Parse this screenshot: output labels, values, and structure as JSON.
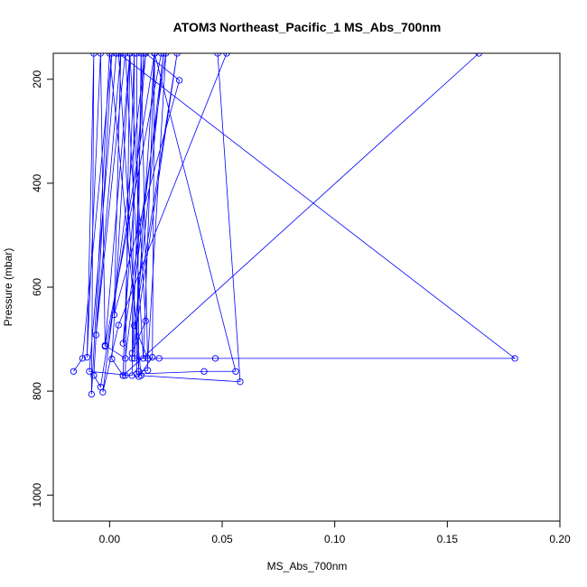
{
  "chart_data": {
    "type": "line",
    "title": "ATOM3 Northeast_Pacific_1 MS_Abs_700nm",
    "xlabel": "MS_Abs_700nm",
    "ylabel": "Pressure (mbar)",
    "xlim": [
      -0.025,
      0.2
    ],
    "ylim": [
      1050,
      150
    ],
    "y_reversed": true,
    "x_ticks": [
      0.0,
      0.05,
      0.1,
      0.15,
      0.2
    ],
    "x_tick_labels": [
      "0.00",
      "0.05",
      "0.10",
      "0.15",
      "0.20"
    ],
    "y_ticks": [
      200,
      400,
      600,
      800,
      1000
    ],
    "y_tick_labels": [
      "200",
      "400",
      "600",
      "800",
      "1000"
    ],
    "grid": false,
    "legend": "none",
    "series_color": "#0000ff",
    "series": [
      {
        "x": [
          -0.016,
          -0.012,
          0.001,
          -0.007,
          -0.004,
          0.02,
          0.016,
          -0.003,
          0.004,
          0.052,
          0.048,
          0.058,
          0.014,
          0.0,
          -0.008,
          -0.007,
          -0.01,
          -0.004,
          -0.002,
          0.007,
          0.024,
          0.01,
          0.016,
          0.009,
          -0.002,
          0.023,
          0.016,
          0.006,
          0.025,
          0.017,
          0.011,
          0.03,
          0.01,
          0.015,
          0.012,
          0.013,
          0.019,
          0.02,
          0.011,
          0.022,
          0.047,
          0.18,
          0.004,
          0.013,
          0.017,
          0.014,
          0.012,
          0.042,
          0.056,
          0.02,
          0.02,
          0.015,
          0.007,
          -0.006,
          0.005,
          0.002,
          0.031,
          0.016,
          0.003,
          -0.009,
          0.01,
          0.011,
          0.006,
          0.007,
          0.009,
          0.001,
          0.006,
          0.164
        ],
        "y": [
          762,
          737,
          150,
          770,
          792,
          150,
          150,
          802,
          673,
          150,
          150,
          782,
          770,
          150,
          806,
          150,
          735,
          150,
          712,
          737,
          150,
          727,
          665,
          150,
          714,
          150,
          150,
          708,
          150,
          737,
          674,
          150,
          737,
          150,
          150,
          772,
          735,
          150,
          737,
          737,
          737,
          737,
          150,
          762,
          760,
          150,
          767,
          762,
          762,
          150,
          150,
          737,
          150,
          692,
          150,
          653,
          202,
          150,
          150,
          762,
          770,
          150,
          770,
          770,
          150,
          738,
          770,
          150
        ]
      }
    ],
    "notes_points_at_150_are_clipped_beyond_top": true
  }
}
